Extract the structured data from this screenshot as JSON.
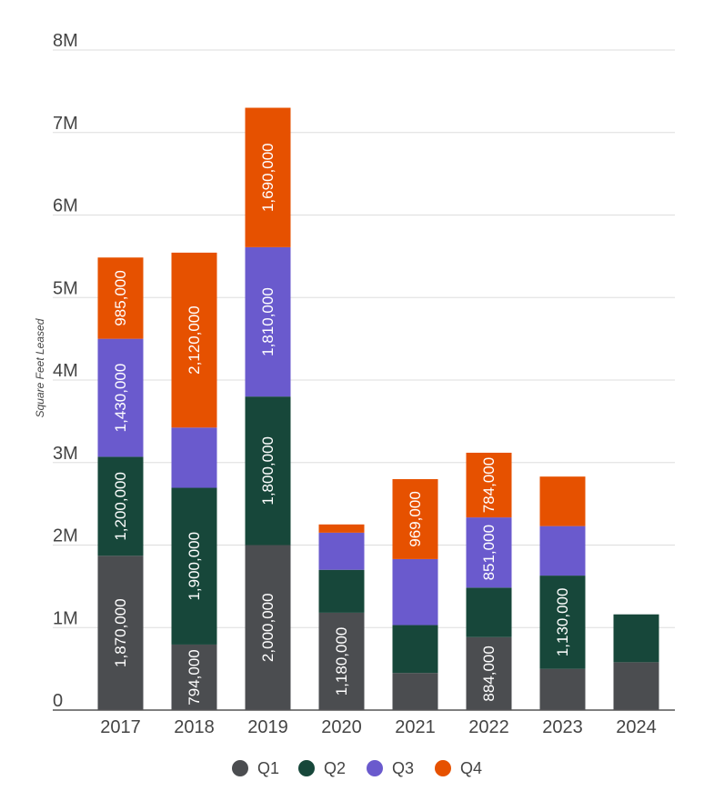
{
  "chart_data": {
    "type": "bar",
    "stacked": true,
    "title": "",
    "xlabel": "",
    "ylabel": "Square Feet Leased",
    "ylim": [
      0,
      8000000
    ],
    "yticks": [
      {
        "value": 0,
        "label": "0"
      },
      {
        "value": 1000000,
        "label": "1M"
      },
      {
        "value": 2000000,
        "label": "2M"
      },
      {
        "value": 3000000,
        "label": "3M"
      },
      {
        "value": 4000000,
        "label": "4M"
      },
      {
        "value": 5000000,
        "label": "5M"
      },
      {
        "value": 6000000,
        "label": "6M"
      },
      {
        "value": 7000000,
        "label": "7M"
      },
      {
        "value": 8000000,
        "label": "8M"
      }
    ],
    "categories": [
      "2017",
      "2018",
      "2019",
      "2020",
      "2021",
      "2022",
      "2023",
      "2024"
    ],
    "series": [
      {
        "name": "Q1",
        "color": "#4b4d50",
        "values": [
          1870000,
          794000,
          2000000,
          1180000,
          450000,
          884000,
          500000,
          580000
        ],
        "labels": [
          "1,870,000",
          "794,000",
          "2,000,000",
          "1,180,000",
          "",
          "884,000",
          "",
          ""
        ]
      },
      {
        "name": "Q2",
        "color": "#17473a",
        "values": [
          1200000,
          1900000,
          1800000,
          520000,
          580000,
          600000,
          1130000,
          580000
        ],
        "labels": [
          "1,200,000",
          "1,900,000",
          "1,800,000",
          "",
          "",
          "",
          "1,130,000",
          ""
        ]
      },
      {
        "name": "Q3",
        "color": "#6a5acd",
        "values": [
          1430000,
          730000,
          1810000,
          450000,
          800000,
          851000,
          600000,
          0
        ],
        "labels": [
          "1,430,000",
          "",
          "1,810,000",
          "",
          "",
          "851,000",
          "",
          ""
        ]
      },
      {
        "name": "Q4",
        "color": "#e65100",
        "values": [
          985000,
          2120000,
          1690000,
          100000,
          969000,
          784000,
          600000,
          0
        ],
        "labels": [
          "985,000",
          "2,120,000",
          "1,690,000",
          "",
          "969,000",
          "784,000",
          "",
          ""
        ]
      }
    ],
    "legend_position": "bottom-center",
    "gridlines": true
  }
}
